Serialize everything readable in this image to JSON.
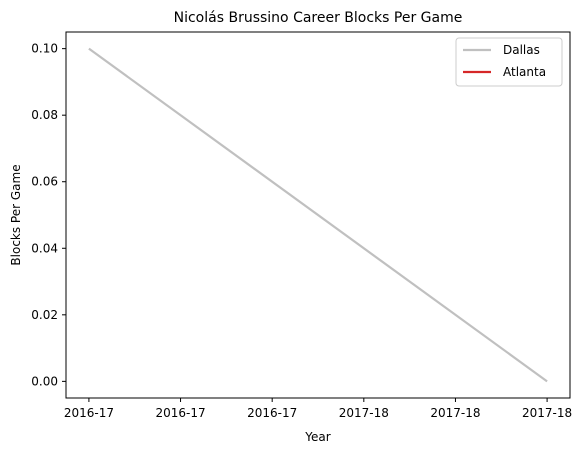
{
  "chart_data": {
    "type": "line",
    "title": "Nicolás Brussino Career Blocks Per Game",
    "xlabel": "Year",
    "ylabel": "Blocks Per Game",
    "x": [
      "2016-17",
      "2016-17",
      "2016-17",
      "2017-18",
      "2017-18",
      "2017-18"
    ],
    "xlim": [
      -0.25,
      5.25
    ],
    "y_ticks": [
      "0.00",
      "0.02",
      "0.04",
      "0.06",
      "0.08",
      "0.10"
    ],
    "ylim": [
      -0.005,
      0.105
    ],
    "grid": false,
    "legend_position": "top-right",
    "series": [
      {
        "name": "Dallas",
        "color": "#c0c0c0",
        "points": [
          [
            0,
            0.1
          ],
          [
            5,
            0.0
          ]
        ]
      },
      {
        "name": "Atlanta",
        "color": "#d62728",
        "points": []
      }
    ]
  }
}
